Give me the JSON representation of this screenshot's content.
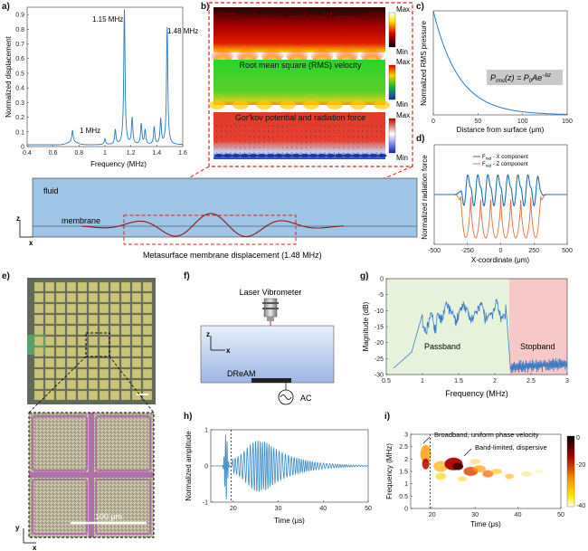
{
  "panels": {
    "a": {
      "label": "a)",
      "chart_data": {
        "type": "line",
        "xlabel": "Frequency (MHz)",
        "ylabel": "Normalized displacement",
        "xlim": [
          0.4,
          1.6
        ],
        "ylim": [
          0,
          0.95
        ],
        "xticks": [
          "0.4",
          "0.6",
          "0.8",
          "1",
          "1.2",
          "1.4",
          "1.6"
        ],
        "yticks": [
          "0",
          "0.1",
          "0.2",
          "0.3",
          "0.4",
          "0.5",
          "0.6",
          "0.7",
          "0.8",
          "0.9"
        ],
        "peaks": [
          {
            "x": 0.75,
            "y": 0.08
          },
          {
            "x": 1.0,
            "y": 0.04
          },
          {
            "x": 1.08,
            "y": 0.1
          },
          {
            "x": 1.15,
            "y": 0.92
          },
          {
            "x": 1.21,
            "y": 0.18
          },
          {
            "x": 1.28,
            "y": 0.14
          },
          {
            "x": 1.31,
            "y": 0.1
          },
          {
            "x": 1.38,
            "y": 0.12
          },
          {
            "x": 1.43,
            "y": 0.17
          },
          {
            "x": 1.48,
            "y": 0.8
          }
        ],
        "annotations": [
          "1.15 MHz",
          "1.48 MHz",
          "1 MHz"
        ]
      }
    },
    "b": {
      "label": "b)",
      "sub": [
        {
          "title": "Root mean square (RMS) pressure",
          "max": "Max",
          "min": "Min"
        },
        {
          "title": "Root mean square (RMS) velocity",
          "max": "Max",
          "min": "Min"
        },
        {
          "title": "Gor'kov potential and radiation force",
          "max": "Max",
          "min": "Min"
        }
      ]
    },
    "c": {
      "label": "c)",
      "chart_data": {
        "type": "line",
        "xlabel": "Distance from surface (μm)",
        "ylabel": "Normalized RMS pressure",
        "xlim": [
          0,
          150
        ],
        "ylim": [
          0,
          1
        ],
        "xticks": [
          "0",
          "50",
          "100",
          "150"
        ],
        "decay_rate": 0.035,
        "equation": "P_rms(z) = P_0 A e^{-bz}"
      }
    },
    "d": {
      "label": "d)",
      "chart_data": {
        "type": "line",
        "xlabel": "X-coordinate (μm)",
        "ylabel": "Normalized radiation force",
        "xlim": [
          -500,
          500
        ],
        "xticks": [
          "-500",
          "-250",
          "0",
          "250",
          "500"
        ],
        "series": [
          {
            "name": "F_rad - X component",
            "color": "#1f6fb5"
          },
          {
            "name": "F_rad - Z component",
            "color": "#e0703a"
          }
        ],
        "legend": [
          "F",
          "rad",
          "- X component",
          "F",
          "rad",
          "- Z component"
        ]
      }
    },
    "sim": {
      "fluid": "fluid",
      "membrane": "membrane",
      "z": "z",
      "x": "x",
      "caption": "Metasurface membrane displacement (1.48 MHz)"
    },
    "e": {
      "label": "e)",
      "scale": "100 μm",
      "y": "y",
      "x": "x"
    },
    "f": {
      "label": "f)",
      "vibrometer": "Laser Vibrometer",
      "device": "DReAM",
      "source": "AC",
      "z": "z",
      "x": "x"
    },
    "g": {
      "label": "g)",
      "chart_data": {
        "type": "line",
        "xlabel": "Frequency (MHz)",
        "ylabel": "Magnitude (dB)",
        "xlim": [
          0.5,
          3
        ],
        "ylim": [
          -30,
          0
        ],
        "xticks": [
          "0.5",
          "1",
          "1.5",
          "2",
          "2.5",
          "3"
        ],
        "yticks": [
          "0",
          "-5",
          "-10",
          "-15",
          "-20",
          "-25",
          "-30"
        ],
        "regions": [
          "Passband",
          "Stopband"
        ],
        "cutoff": 2.2
      }
    },
    "h": {
      "label": "h)",
      "chart_data": {
        "type": "line",
        "xlabel": "Time (μs)",
        "ylabel": "Normalized amplitude",
        "xlim": [
          15,
          50
        ],
        "ylim": [
          -1,
          1
        ],
        "xticks": [
          "20",
          "30",
          "40",
          "50"
        ],
        "yticks": [
          "1",
          "0",
          "-1"
        ],
        "marker_time": 19.5
      }
    },
    "i": {
      "label": "i)",
      "chart_data": {
        "type": "heatmap",
        "xlabel": "Time (μs)",
        "ylabel": "Frequency (MHz)",
        "xlim": [
          15,
          50
        ],
        "ylim": [
          0,
          3
        ],
        "xticks": [
          "20",
          "30",
          "40",
          "50"
        ],
        "yticks": [
          "0",
          "0.5",
          "1",
          "1.5",
          "2",
          "2.5",
          "3"
        ],
        "colorbar": [
          "0",
          "-20",
          "-40"
        ],
        "annotations": [
          "Broadband, uniform phase velocity",
          "Band-limited, dispersive"
        ],
        "marker_time": 19.5
      }
    }
  }
}
